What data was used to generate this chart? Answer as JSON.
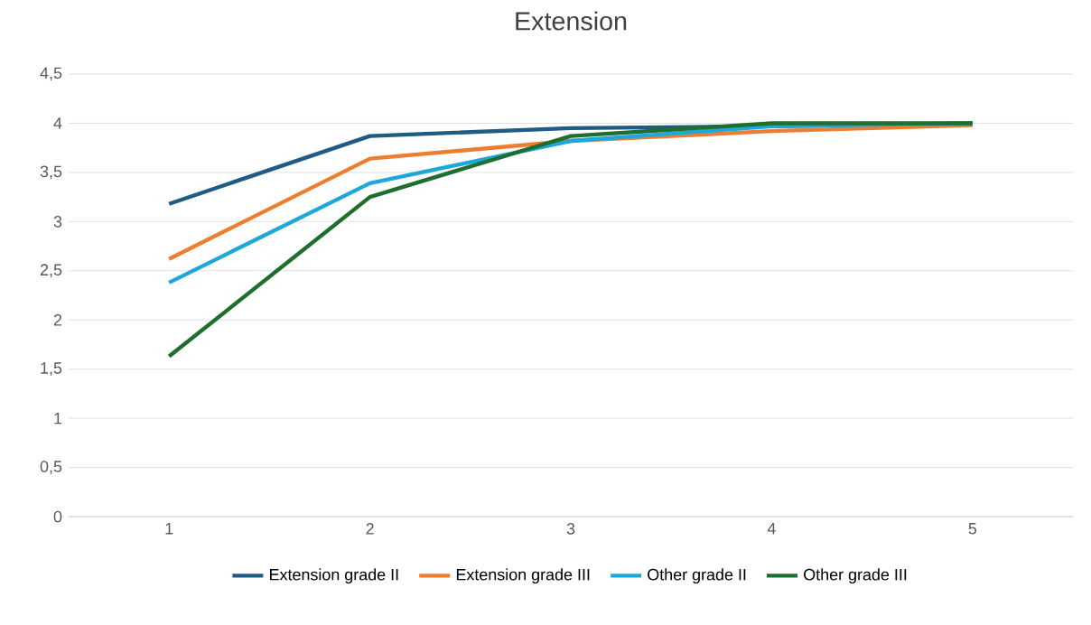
{
  "chart_data": {
    "type": "line",
    "title": "Extension",
    "x": [
      1,
      2,
      3,
      4,
      5
    ],
    "xlim": [
      0.5,
      5.5
    ],
    "xticks": [
      1,
      2,
      3,
      4,
      5
    ],
    "ylim": [
      0,
      4.5
    ],
    "yticks": [
      {
        "value": 0,
        "label": "0"
      },
      {
        "value": 0.5,
        "label": "0,5"
      },
      {
        "value": 1,
        "label": "1"
      },
      {
        "value": 1.5,
        "label": "1,5"
      },
      {
        "value": 2,
        "label": "2"
      },
      {
        "value": 2.5,
        "label": "2,5"
      },
      {
        "value": 3,
        "label": "3"
      },
      {
        "value": 3.5,
        "label": "3,5"
      },
      {
        "value": 4,
        "label": "4"
      },
      {
        "value": 4.5,
        "label": "4,5"
      }
    ],
    "grid": "y",
    "legend": "bottom",
    "marker": "none",
    "line_style": "solid",
    "series": [
      {
        "name": "Extension grade II",
        "color": "#1f5c84",
        "values": [
          3.18,
          3.87,
          3.95,
          3.97,
          4.0
        ]
      },
      {
        "name": "Extension grade III",
        "color": "#ed7d31",
        "values": [
          2.62,
          3.64,
          3.82,
          3.92,
          3.98
        ]
      },
      {
        "name": "Other grade II",
        "color": "#1ea7db",
        "values": [
          2.38,
          3.39,
          3.82,
          3.97,
          4.0
        ]
      },
      {
        "name": "Other grade III",
        "color": "#1e6e2e",
        "values": [
          1.63,
          3.25,
          3.87,
          4.0,
          4.0
        ]
      }
    ]
  }
}
